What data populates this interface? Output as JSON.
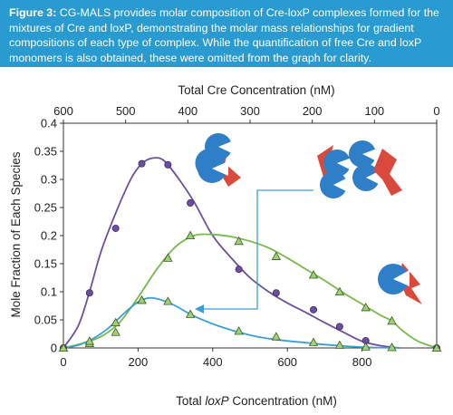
{
  "caption": {
    "label": "Figure 3:",
    "text": " CG-MALS provides molar composition of Cre-loxP complexes formed for the mixtures of Cre and loxP, demonstrating the molar mass relationships for gradient compositions of each type of complex. While the quantification of free Cre and loxP monomers is also obtained, these were omitted from the graph for clarity."
  },
  "chart_data": {
    "type": "line",
    "title": "",
    "xlabel_prefix": "Total ",
    "xlabel_italic": "loxP",
    "xlabel_suffix": " Concentration (nM)",
    "x2label": "Total Cre Concentration (nM)",
    "ylabel": "Mole Fraction of Each Species",
    "xlim": [
      0,
      1000
    ],
    "x2lim": [
      600,
      0
    ],
    "ylim": [
      0,
      0.4
    ],
    "x_ticks": [
      0,
      200,
      400,
      600,
      800
    ],
    "x2_ticks": [
      600,
      500,
      400,
      300,
      200,
      100,
      0
    ],
    "y_ticks": [
      0,
      0.05,
      0.1,
      0.15,
      0.2,
      0.25,
      0.3,
      0.35,
      0.4
    ],
    "y_tick_labels": [
      "0",
      "0.05",
      "0.1",
      "0.15",
      "0.2",
      "0.25",
      "0.3",
      "0.35",
      "0.4"
    ],
    "grid": false,
    "series": [
      {
        "color": "#6b4fa0",
        "marker": "circle",
        "marker_color": "#6b4fa0",
        "curve": [
          [
            0,
            0
          ],
          [
            40,
            0.04
          ],
          [
            70,
            0.1
          ],
          [
            100,
            0.17
          ],
          [
            140,
            0.24
          ],
          [
            180,
            0.3
          ],
          [
            210,
            0.328
          ],
          [
            240,
            0.338
          ],
          [
            270,
            0.333
          ],
          [
            310,
            0.3
          ],
          [
            350,
            0.26
          ],
          [
            400,
            0.2
          ],
          [
            450,
            0.16
          ],
          [
            500,
            0.125
          ],
          [
            550,
            0.1
          ],
          [
            600,
            0.08
          ],
          [
            650,
            0.063
          ],
          [
            700,
            0.045
          ],
          [
            750,
            0.028
          ],
          [
            800,
            0.012
          ],
          [
            850,
            0.004
          ],
          [
            900,
            0
          ]
        ],
        "points": [
          [
            0,
            0
          ],
          [
            70,
            0.098
          ],
          [
            140,
            0.213
          ],
          [
            210,
            0.328
          ],
          [
            280,
            0.326
          ],
          [
            340,
            0.258
          ],
          [
            470,
            0.14
          ],
          [
            570,
            0.098
          ],
          [
            670,
            0.068
          ],
          [
            740,
            0.038
          ],
          [
            810,
            0.013
          ],
          [
            1000,
            0
          ]
        ]
      },
      {
        "color": "#78b84a",
        "marker": "triangle",
        "marker_color": "#9ed177",
        "curve": [
          [
            0,
            0
          ],
          [
            50,
            0.008
          ],
          [
            100,
            0.02
          ],
          [
            150,
            0.045
          ],
          [
            200,
            0.09
          ],
          [
            250,
            0.14
          ],
          [
            300,
            0.18
          ],
          [
            350,
            0.2
          ],
          [
            400,
            0.202
          ],
          [
            450,
            0.198
          ],
          [
            500,
            0.19
          ],
          [
            550,
            0.178
          ],
          [
            600,
            0.16
          ],
          [
            650,
            0.14
          ],
          [
            700,
            0.12
          ],
          [
            750,
            0.098
          ],
          [
            800,
            0.078
          ],
          [
            850,
            0.058
          ],
          [
            880,
            0.048
          ],
          [
            910,
            0.03
          ],
          [
            950,
            0.012
          ],
          [
            1000,
            0
          ]
        ],
        "points": [
          [
            0,
            0
          ],
          [
            70,
            0.008
          ],
          [
            140,
            0.028
          ],
          [
            210,
            0.085
          ],
          [
            280,
            0.16
          ],
          [
            340,
            0.2
          ],
          [
            470,
            0.19
          ],
          [
            570,
            0.163
          ],
          [
            670,
            0.13
          ],
          [
            740,
            0.1
          ],
          [
            810,
            0.072
          ],
          [
            880,
            0.048
          ],
          [
            1000,
            0
          ]
        ]
      },
      {
        "color": "#3a9fd6",
        "marker": "triangle",
        "marker_color": "#9ed177",
        "curve": [
          [
            0,
            0
          ],
          [
            40,
            0.005
          ],
          [
            80,
            0.017
          ],
          [
            120,
            0.035
          ],
          [
            160,
            0.06
          ],
          [
            200,
            0.082
          ],
          [
            230,
            0.089
          ],
          [
            260,
            0.086
          ],
          [
            300,
            0.075
          ],
          [
            340,
            0.06
          ],
          [
            380,
            0.048
          ],
          [
            420,
            0.038
          ],
          [
            470,
            0.028
          ],
          [
            520,
            0.02
          ],
          [
            580,
            0.014
          ],
          [
            640,
            0.01
          ],
          [
            700,
            0.006
          ],
          [
            760,
            0.003
          ],
          [
            820,
            0.001
          ],
          [
            900,
            0
          ]
        ],
        "points": [
          [
            0,
            0
          ],
          [
            70,
            0.012
          ],
          [
            140,
            0.045
          ],
          [
            210,
            0.085
          ],
          [
            280,
            0.083
          ],
          [
            340,
            0.06
          ],
          [
            470,
            0.03
          ],
          [
            570,
            0.02
          ],
          [
            670,
            0.01
          ],
          [
            740,
            0.005
          ],
          [
            810,
            0.002
          ],
          [
            880,
            0.001
          ],
          [
            1000,
            0
          ]
        ]
      }
    ]
  },
  "pointer_arrow": {
    "color": "#3a9fd6"
  },
  "icons": [
    {
      "name": "cre-loxp-dimer-icon",
      "blue": "#2f7fc8",
      "red": "#d94a3d"
    },
    {
      "name": "cre-loxp-tetramer-icon",
      "blue": "#2f7fc8",
      "red": "#d94a3d"
    },
    {
      "name": "cre-loxp-monomer-icon",
      "blue": "#2f7fc8",
      "red": "#d94a3d"
    }
  ]
}
